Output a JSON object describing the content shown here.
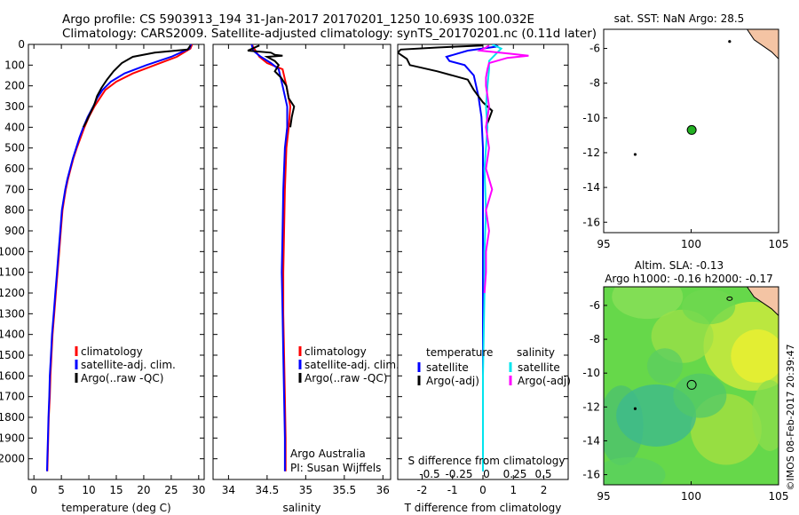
{
  "header": {
    "line1": "Argo profile: CS 5903913_194 31-Jan-2017 20170201_1250 10.693S 100.032E",
    "line2": "Climatology: CARS2009. Satellite-adjusted climatology: synTS_20170201.nc (0.11d later)"
  },
  "colors": {
    "climatology": "#ff0000",
    "satellite": "#0000ff",
    "argo": "#000000",
    "sal_satellite": "#00e5ee",
    "sal_argo": "#ff00ff",
    "land": "#f4c4a4",
    "float_marker": "#22b022"
  },
  "chart_data": [
    {
      "id": "temperature",
      "type": "line",
      "xlabel": "temperature (deg C)",
      "ylim": [
        0,
        2100
      ],
      "xlim": [
        -1,
        31
      ],
      "xticks": [
        0,
        5,
        10,
        15,
        20,
        25,
        30
      ],
      "yticks": [
        0,
        100,
        200,
        300,
        400,
        500,
        600,
        700,
        800,
        900,
        1000,
        1100,
        1200,
        1300,
        1400,
        1500,
        1600,
        1700,
        1800,
        1900,
        2000
      ],
      "legend": [
        "climatology",
        "satellite-adj. clim.",
        "Argo(..raw -QC)"
      ],
      "series": [
        {
          "name": "climatology",
          "color_key": "climatology",
          "points": [
            [
              28.8,
              0
            ],
            [
              28.5,
              20
            ],
            [
              26,
              60
            ],
            [
              22,
              100
            ],
            [
              18,
              140
            ],
            [
              15,
              180
            ],
            [
              13,
              220
            ],
            [
              12,
              260
            ],
            [
              11,
              300
            ],
            [
              10,
              350
            ],
            [
              9.2,
              400
            ],
            [
              8.5,
              450
            ],
            [
              7.8,
              500
            ],
            [
              7.2,
              550
            ],
            [
              6.7,
              600
            ],
            [
              6.2,
              650
            ],
            [
              5.8,
              700
            ],
            [
              5.5,
              750
            ],
            [
              5.2,
              800
            ],
            [
              4.9,
              900
            ],
            [
              4.6,
              1000
            ],
            [
              4.3,
              1100
            ],
            [
              4.0,
              1200
            ],
            [
              3.7,
              1300
            ],
            [
              3.4,
              1400
            ],
            [
              3.2,
              1500
            ],
            [
              3.0,
              1600
            ],
            [
              2.9,
              1700
            ],
            [
              2.7,
              1800
            ],
            [
              2.6,
              1900
            ],
            [
              2.5,
              2000
            ],
            [
              2.45,
              2060
            ]
          ]
        },
        {
          "name": "satellite-adj. clim.",
          "color_key": "satellite",
          "points": [
            [
              28.6,
              0
            ],
            [
              28.3,
              20
            ],
            [
              25,
              60
            ],
            [
              20.5,
              100
            ],
            [
              16.5,
              140
            ],
            [
              14,
              180
            ],
            [
              12.5,
              220
            ],
            [
              11.5,
              260
            ],
            [
              10.8,
              300
            ],
            [
              9.8,
              350
            ],
            [
              9.0,
              400
            ],
            [
              8.3,
              450
            ],
            [
              7.7,
              500
            ],
            [
              7.1,
              550
            ],
            [
              6.6,
              600
            ],
            [
              6.1,
              650
            ],
            [
              5.7,
              700
            ],
            [
              5.4,
              750
            ],
            [
              5.1,
              800
            ],
            [
              4.8,
              900
            ],
            [
              4.5,
              1000
            ],
            [
              4.2,
              1100
            ],
            [
              3.9,
              1200
            ],
            [
              3.6,
              1300
            ],
            [
              3.3,
              1400
            ],
            [
              3.1,
              1500
            ],
            [
              2.9,
              1600
            ],
            [
              2.8,
              1700
            ],
            [
              2.65,
              1800
            ],
            [
              2.55,
              1900
            ],
            [
              2.45,
              2000
            ],
            [
              2.4,
              2060
            ]
          ]
        },
        {
          "name": "Argo(..raw -QC)",
          "color_key": "argo",
          "points": [
            [
              28.5,
              5
            ],
            [
              28,
              25
            ],
            [
              22,
              40
            ],
            [
              18,
              60
            ],
            [
              16,
              90
            ],
            [
              14.5,
              130
            ],
            [
              13.3,
              170
            ],
            [
              12.3,
              210
            ],
            [
              11.5,
              250
            ],
            [
              11,
              290
            ],
            [
              10.3,
              330
            ],
            [
              9.6,
              370
            ],
            [
              9.0,
              400
            ]
          ]
        }
      ]
    },
    {
      "id": "salinity",
      "type": "line",
      "xlabel": "salinity",
      "ylim": [
        0,
        2100
      ],
      "xlim": [
        33.8,
        36.1
      ],
      "xticks": [
        34,
        34.5,
        35,
        35.5,
        36
      ],
      "legend": [
        "climatology",
        "satellite-adj. clim.",
        "Argo(..raw -QC)"
      ],
      "annotation": [
        "Argo Australia",
        "PI: Susan Wijffels"
      ],
      "series": [
        {
          "name": "climatology",
          "color_key": "climatology",
          "points": [
            [
              34.3,
              0
            ],
            [
              34.35,
              30
            ],
            [
              34.4,
              60
            ],
            [
              34.5,
              90
            ],
            [
              34.7,
              120
            ],
            [
              34.75,
              200
            ],
            [
              34.8,
              300
            ],
            [
              34.78,
              400
            ],
            [
              34.75,
              500
            ],
            [
              34.73,
              700
            ],
            [
              34.72,
              900
            ],
            [
              34.71,
              1100
            ],
            [
              34.71,
              1300
            ],
            [
              34.72,
              1500
            ],
            [
              34.73,
              1700
            ],
            [
              34.74,
              1900
            ],
            [
              34.74,
              2060
            ]
          ]
        },
        {
          "name": "satellite-adj. clim.",
          "color_key": "satellite",
          "points": [
            [
              34.3,
              0
            ],
            [
              34.32,
              30
            ],
            [
              34.42,
              60
            ],
            [
              34.55,
              90
            ],
            [
              34.65,
              120
            ],
            [
              34.7,
              200
            ],
            [
              34.76,
              300
            ],
            [
              34.76,
              400
            ],
            [
              34.73,
              500
            ],
            [
              34.71,
              700
            ],
            [
              34.7,
              900
            ],
            [
              34.69,
              1100
            ],
            [
              34.7,
              1300
            ],
            [
              34.71,
              1500
            ],
            [
              34.72,
              1700
            ],
            [
              34.73,
              1900
            ],
            [
              34.73,
              2060
            ]
          ]
        },
        {
          "name": "Argo(..raw -QC)",
          "color_key": "argo",
          "points": [
            [
              34.4,
              5
            ],
            [
              34.25,
              30
            ],
            [
              34.55,
              40
            ],
            [
              34.6,
              50
            ],
            [
              34.7,
              55
            ],
            [
              34.5,
              60
            ],
            [
              34.6,
              80
            ],
            [
              34.65,
              100
            ],
            [
              34.6,
              130
            ],
            [
              34.68,
              160
            ],
            [
              34.75,
              200
            ],
            [
              34.78,
              260
            ],
            [
              34.85,
              300
            ],
            [
              34.82,
              350
            ],
            [
              34.8,
              400
            ]
          ]
        }
      ]
    },
    {
      "id": "difference",
      "type": "line",
      "xlabel": "T difference from climatology",
      "top_label": "S difference from climatology",
      "ylim": [
        0,
        2100
      ],
      "xlim": [
        -2.8,
        2.8
      ],
      "xticks": [
        -2,
        -1,
        0,
        1,
        2
      ],
      "top_ticks": [
        "-0.5",
        "-0.25",
        "0",
        "0.25",
        "0.5"
      ],
      "legend_titles": [
        "temperature",
        "salinity"
      ],
      "legend": [
        "satellite",
        "Argo(-adj)",
        "satellite",
        "Argo(-adj)"
      ],
      "series": [
        {
          "name": "satellite",
          "group": "temperature",
          "color_key": "satellite",
          "points": [
            [
              0.3,
              0
            ],
            [
              0.5,
              10
            ],
            [
              -0.5,
              30
            ],
            [
              -1.2,
              60
            ],
            [
              -1.1,
              80
            ],
            [
              -0.6,
              100
            ],
            [
              -0.3,
              150
            ],
            [
              -0.15,
              250
            ],
            [
              -0.05,
              350
            ],
            [
              0,
              500
            ],
            [
              0,
              800
            ],
            [
              0,
              1200
            ],
            [
              0,
              1600
            ],
            [
              0,
              2060
            ]
          ]
        },
        {
          "name": "Argo(-adj)",
          "group": "temperature",
          "color_key": "argo",
          "points": [
            [
              0,
              5
            ],
            [
              -1.5,
              15
            ],
            [
              -2.7,
              25
            ],
            [
              -2.8,
              40
            ],
            [
              -2.5,
              70
            ],
            [
              -2.4,
              100
            ],
            [
              -1.5,
              130
            ],
            [
              -0.5,
              170
            ],
            [
              -0.3,
              220
            ],
            [
              0,
              280
            ],
            [
              0.3,
              320
            ],
            [
              0.2,
              360
            ],
            [
              0.1,
              400
            ]
          ]
        },
        {
          "name": "satellite",
          "group": "salinity",
          "color_key": "sal_satellite",
          "points": [
            [
              0.3,
              0
            ],
            [
              0.6,
              20
            ],
            [
              0.4,
              50
            ],
            [
              0.2,
              80
            ],
            [
              0.2,
              120
            ],
            [
              0.15,
              200
            ],
            [
              0.1,
              300
            ],
            [
              0.15,
              400
            ],
            [
              0.05,
              600
            ],
            [
              0.1,
              800
            ],
            [
              0.05,
              1000
            ],
            [
              0.05,
              1200
            ],
            [
              0,
              1600
            ],
            [
              0,
              2060
            ]
          ]
        },
        {
          "name": "Argo(-adj)",
          "group": "salinity",
          "color_key": "sal_argo",
          "points": [
            [
              0.2,
              5
            ],
            [
              0.1,
              15
            ],
            [
              -0.1,
              30
            ],
            [
              0.9,
              45
            ],
            [
              1.5,
              55
            ],
            [
              0.8,
              65
            ],
            [
              0.2,
              90
            ],
            [
              0.15,
              120
            ],
            [
              0.1,
              160
            ],
            [
              0.1,
              200
            ],
            [
              0.2,
              300
            ],
            [
              0.1,
              400
            ],
            [
              0.2,
              500
            ],
            [
              0.1,
              600
            ],
            [
              0.3,
              700
            ],
            [
              0.1,
              800
            ],
            [
              0.2,
              900
            ],
            [
              0.1,
              1000
            ],
            [
              0.1,
              1100
            ],
            [
              0.05,
              1200
            ]
          ]
        }
      ]
    },
    {
      "id": "sst-map",
      "type": "scatter",
      "title": "sat. SST: NaN Argo: 28.5",
      "xlim": [
        95,
        105
      ],
      "ylim": [
        -16.6,
        -4.9
      ],
      "xticks": [
        95,
        100,
        105
      ],
      "yticks": [
        -16,
        -14,
        -12,
        -10,
        -8,
        -6
      ],
      "float": {
        "lon": 100.032,
        "lat": -10.693
      },
      "islands": [
        [
          96.8,
          -12.1
        ],
        [
          102.2,
          -5.6
        ]
      ]
    },
    {
      "id": "sla-map",
      "type": "heatmap",
      "title": "Altim. SLA: -0.13",
      "subtitle": "Argo h1000: -0.16 h2000: -0.17",
      "xlim": [
        95,
        105
      ],
      "ylim": [
        -16.6,
        -4.9
      ],
      "xticks": [
        95,
        100,
        105
      ],
      "yticks": [
        -16,
        -14,
        -12,
        -10,
        -8,
        -6
      ],
      "float": {
        "lon": 100.032,
        "lat": -10.693
      },
      "credit": "©IMOS 08-Feb-2017 20:39:47"
    }
  ]
}
